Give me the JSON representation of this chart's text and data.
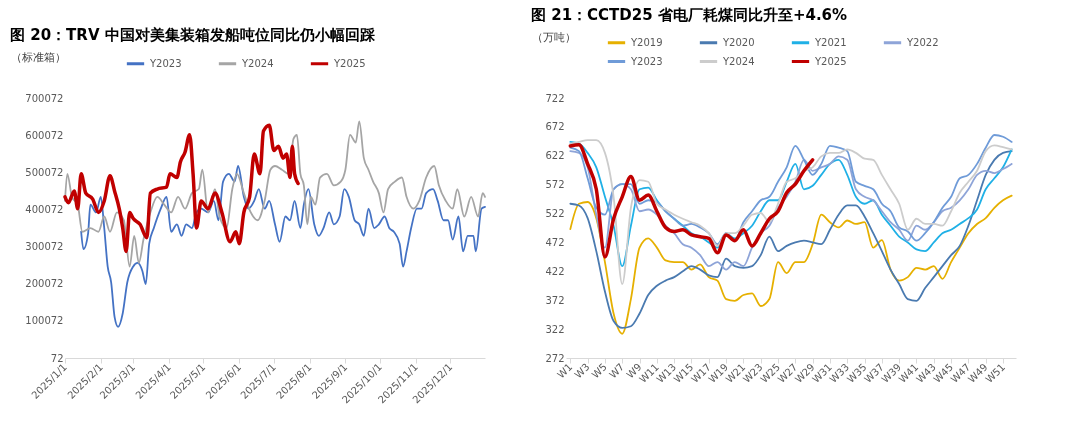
{
  "chart_data": [
    {
      "type": "line",
      "title": "图 20：TRV 中国对美集装箱发船吨位同比仍小幅回踩",
      "ylabel": "（标准箱）",
      "legend": "top",
      "grid": false,
      "xlim": [
        "2025-01-01",
        "2025-12-31"
      ],
      "xticks": [
        {
          "value": "2025-01-01",
          "label": "2025/1/1"
        },
        {
          "value": "2025-02-01",
          "label": "2025/2/1"
        },
        {
          "value": "2025-03-01",
          "label": "2025/3/1"
        },
        {
          "value": "2025-04-01",
          "label": "2025/4/1"
        },
        {
          "value": "2025-05-01",
          "label": "2025/5/1"
        },
        {
          "value": "2025-06-01",
          "label": "2025/6/1"
        },
        {
          "value": "2025-07-01",
          "label": "2025/7/1"
        },
        {
          "value": "2025-08-01",
          "label": "2025/8/1"
        },
        {
          "value": "2025-09-01",
          "label": "2025/9/1"
        },
        {
          "value": "2025-10-01",
          "label": "2025/10/1"
        },
        {
          "value": "2025-11-01",
          "label": "2025/11/1"
        },
        {
          "value": "2025-12-01",
          "label": "2025/12/1"
        }
      ],
      "ylim": [
        72,
        700072
      ],
      "yticks": [
        72,
        100072,
        200072,
        300072,
        400072,
        500072,
        600072,
        700072
      ],
      "series": [
        {
          "name": "Y2023",
          "color": "#4472c4",
          "x": [
            "2025-01-15",
            "2025-01-17",
            "2025-01-21",
            "2025-01-23",
            "2025-01-28",
            "2025-02-01",
            "2025-02-04",
            "2025-02-07",
            "2025-02-10",
            "2025-02-13",
            "2025-02-16",
            "2025-02-20",
            "2025-02-24",
            "2025-03-01",
            "2025-03-05",
            "2025-03-09",
            "2025-03-12",
            "2025-03-15",
            "2025-03-19",
            "2025-03-25",
            "2025-03-30",
            "2025-04-03",
            "2025-04-08",
            "2025-04-12",
            "2025-04-16",
            "2025-04-21",
            "2025-04-25",
            "2025-04-29",
            "2025-05-05",
            "2025-05-10",
            "2025-05-14",
            "2025-05-18",
            "2025-05-23",
            "2025-05-28",
            "2025-05-31",
            "2025-06-05",
            "2025-06-09",
            "2025-06-14",
            "2025-06-18",
            "2025-06-23",
            "2025-06-27",
            "2025-07-02",
            "2025-07-06",
            "2025-07-11",
            "2025-07-15",
            "2025-07-19",
            "2025-07-24",
            "2025-07-27",
            "2025-07-31",
            "2025-08-05",
            "2025-08-09",
            "2025-08-13",
            "2025-08-18",
            "2025-08-22",
            "2025-08-27",
            "2025-08-31",
            "2025-09-04",
            "2025-09-09",
            "2025-09-13",
            "2025-09-17",
            "2025-09-21",
            "2025-09-26",
            "2025-09-30",
            "2025-10-05",
            "2025-10-09",
            "2025-10-13",
            "2025-10-18",
            "2025-10-21",
            "2025-10-24",
            "2025-10-28",
            "2025-11-02",
            "2025-11-06",
            "2025-11-10",
            "2025-11-16",
            "2025-11-20",
            "2025-11-25",
            "2025-11-29",
            "2025-12-03",
            "2025-12-08",
            "2025-12-12",
            "2025-12-16",
            "2025-12-21",
            "2025-12-23",
            "2025-12-28",
            "2025-12-31"
          ],
          "values": [
            340000,
            293000,
            335000,
            413000,
            392000,
            434000,
            350000,
            246000,
            204000,
            110000,
            84000,
            120000,
            204000,
            246000,
            256000,
            235000,
            199000,
            308000,
            350000,
            402000,
            434000,
            340000,
            360000,
            329000,
            360000,
            350000,
            392000,
            402000,
            392000,
            423000,
            371000,
            475000,
            496000,
            475000,
            517000,
            434000,
            402000,
            423000,
            455000,
            402000,
            423000,
            360000,
            313000,
            381000,
            371000,
            423000,
            350000,
            413000,
            455000,
            360000,
            329000,
            350000,
            392000,
            360000,
            381000,
            455000,
            434000,
            371000,
            360000,
            329000,
            402000,
            350000,
            360000,
            381000,
            350000,
            340000,
            308000,
            246000,
            287000,
            350000,
            402000,
            402000,
            444000,
            455000,
            423000,
            371000,
            371000,
            319000,
            381000,
            287000,
            329000,
            329000,
            287000,
            402000,
            407000
          ]
        },
        {
          "name": "Y2024",
          "color": "#a5a5a5",
          "x": [
            "2025-01-01",
            "2025-01-03",
            "2025-01-07",
            "2025-01-12",
            "2025-01-16",
            "2025-01-23",
            "2025-01-30",
            "2025-02-04",
            "2025-02-09",
            "2025-02-15",
            "2025-02-21",
            "2025-02-26",
            "2025-03-02",
            "2025-03-06",
            "2025-03-10",
            "2025-03-16",
            "2025-03-22",
            "2025-03-28",
            "2025-04-03",
            "2025-04-09",
            "2025-04-15",
            "2025-04-21",
            "2025-04-27",
            "2025-04-30",
            "2025-05-05",
            "2025-05-11",
            "2025-05-15",
            "2025-05-21",
            "2025-05-26",
            "2025-05-30",
            "2025-06-05",
            "2025-06-11",
            "2025-06-17",
            "2025-06-23",
            "2025-06-28",
            "2025-07-02",
            "2025-07-08",
            "2025-07-14",
            "2025-07-18",
            "2025-07-21",
            "2025-07-24",
            "2025-07-27",
            "2025-07-30",
            "2025-08-02",
            "2025-08-06",
            "2025-08-10",
            "2025-08-16",
            "2025-08-22",
            "2025-08-28",
            "2025-09-01",
            "2025-09-05",
            "2025-09-10",
            "2025-09-13",
            "2025-09-17",
            "2025-09-21",
            "2025-09-25",
            "2025-09-30",
            "2025-10-04",
            "2025-10-08",
            "2025-10-14",
            "2025-10-20",
            "2025-10-24",
            "2025-10-30",
            "2025-11-04",
            "2025-11-10",
            "2025-11-17",
            "2025-11-21",
            "2025-11-27",
            "2025-12-03",
            "2025-12-07",
            "2025-12-13",
            "2025-12-19",
            "2025-12-25",
            "2025-12-29",
            "2025-12-31"
          ],
          "values": [
            423000,
            496000,
            434000,
            413000,
            340000,
            350000,
            340000,
            381000,
            340000,
            392000,
            371000,
            246000,
            329000,
            256000,
            319000,
            392000,
            434000,
            413000,
            392000,
            434000,
            402000,
            444000,
            455000,
            507000,
            392000,
            455000,
            381000,
            350000,
            455000,
            496000,
            444000,
            392000,
            371000,
            423000,
            507000,
            517000,
            507000,
            496000,
            590000,
            601000,
            496000,
            465000,
            360000,
            434000,
            413000,
            486000,
            496000,
            465000,
            475000,
            507000,
            601000,
            580000,
            637000,
            538000,
            507000,
            475000,
            444000,
            392000,
            455000,
            475000,
            486000,
            434000,
            402000,
            423000,
            486000,
            517000,
            465000,
            423000,
            402000,
            455000,
            381000,
            434000,
            381000,
            444000,
            434000
          ]
        },
        {
          "name": "Y2025",
          "color": "#c00000",
          "x": [
            "2025-01-01",
            "2025-01-04",
            "2025-01-09",
            "2025-01-12",
            "2025-01-15",
            "2025-01-19",
            "2025-01-25",
            "2025-01-30",
            "2025-02-04",
            "2025-02-09",
            "2025-02-13",
            "2025-02-17",
            "2025-02-20",
            "2025-02-23",
            "2025-02-26",
            "2025-03-01",
            "2025-03-07",
            "2025-03-13",
            "2025-03-16",
            "2025-03-22",
            "2025-03-30",
            "2025-04-02",
            "2025-04-08",
            "2025-04-11",
            "2025-04-15",
            "2025-04-19",
            "2025-04-22",
            "2025-04-25",
            "2025-04-29",
            "2025-05-05",
            "2025-05-11",
            "2025-05-17",
            "2025-05-24",
            "2025-05-29",
            "2025-06-01",
            "2025-06-05",
            "2025-06-10",
            "2025-06-14",
            "2025-06-19",
            "2025-06-22",
            "2025-06-27",
            "2025-07-01",
            "2025-07-05",
            "2025-07-09",
            "2025-07-12",
            "2025-07-15",
            "2025-07-17",
            "2025-07-19",
            "2025-07-22"
          ],
          "values": [
            434000,
            418000,
            450000,
            402000,
            496000,
            444000,
            428000,
            392000,
            423000,
            491000,
            449000,
            402000,
            350000,
            287000,
            392000,
            376000,
            360000,
            324000,
            444000,
            455000,
            460000,
            496000,
            486000,
            528000,
            554000,
            601000,
            496000,
            350000,
            423000,
            402000,
            444000,
            392000,
            313000,
            340000,
            308000,
            392000,
            434000,
            549000,
            496000,
            611000,
            627000,
            559000,
            570000,
            538000,
            549000,
            486000,
            570000,
            496000,
            470000
          ]
        }
      ]
    },
    {
      "type": "line",
      "title": "图 21：CCTD25 省电厂耗煤同比升至+4.6%",
      "ylabel": "（万吨）",
      "legend": "top",
      "grid": false,
      "categories": [
        "W1",
        null,
        "W3",
        null,
        "W5",
        null,
        "W7",
        null,
        "W9",
        null,
        "W11",
        null,
        "W13",
        null,
        "W15",
        null,
        "W17",
        null,
        "W19",
        null,
        "W21",
        null,
        "W23",
        null,
        "W25",
        null,
        "W27",
        null,
        "W29",
        null,
        "W31",
        null,
        "W33",
        null,
        "W35",
        null,
        "W37",
        null,
        "W39",
        null,
        "W41",
        null,
        "W43",
        null,
        "W45",
        null,
        "W47",
        null,
        "W49",
        null,
        "W51",
        null
      ],
      "ylim": [
        272,
        722
      ],
      "yticks": [
        272,
        322,
        372,
        422,
        472,
        522,
        572,
        622,
        672,
        722
      ],
      "series": [
        {
          "name": "Y2019",
          "color": "#e6b000",
          "values": [
            495,
            539,
            542,
            514,
            438,
            349,
            314,
            374,
            463,
            479,
            463,
            441,
            438,
            438,
            425,
            434,
            412,
            406,
            374,
            371,
            381,
            384,
            362,
            374,
            438,
            419,
            438,
            438,
            469,
            520,
            507,
            498,
            510,
            504,
            507,
            463,
            476,
            425,
            406,
            412,
            428,
            425,
            431,
            409,
            438,
            463,
            488,
            504,
            514,
            532,
            545,
            553
          ]
        },
        {
          "name": "Y2020",
          "color": "#4a7ab0",
          "values": [
            539,
            536,
            514,
            457,
            387,
            336,
            324,
            327,
            349,
            381,
            397,
            406,
            412,
            422,
            431,
            425,
            415,
            412,
            444,
            431,
            428,
            431,
            450,
            482,
            457,
            466,
            472,
            475,
            472,
            469,
            494,
            520,
            536,
            536,
            517,
            488,
            457,
            425,
            400,
            374,
            371,
            393,
            412,
            431,
            450,
            466,
            501,
            545,
            589,
            615,
            627,
            630
          ]
        },
        {
          "name": "Y2021",
          "color": "#1fb0e6",
          "values": [
            646,
            643,
            627,
            602,
            551,
            501,
            431,
            501,
            564,
            567,
            545,
            526,
            513,
            501,
            488,
            482,
            472,
            463,
            488,
            479,
            488,
            501,
            526,
            545,
            545,
            577,
            608,
            564,
            570,
            589,
            608,
            615,
            589,
            551,
            539,
            545,
            520,
            501,
            482,
            472,
            460,
            457,
            472,
            488,
            494,
            504,
            514,
            529,
            564,
            583,
            602,
            633
          ]
        },
        {
          "name": "Y2022",
          "color": "#8ea4d8",
          "values": [
            630,
            627,
            602,
            520,
            463,
            564,
            573,
            564,
            526,
            529,
            520,
            501,
            488,
            469,
            463,
            450,
            431,
            438,
            425,
            438,
            431,
            463,
            488,
            501,
            532,
            551,
            577,
            615,
            596,
            602,
            608,
            621,
            615,
            564,
            551,
            545,
            526,
            507,
            494,
            475,
            501,
            494,
            507,
            526,
            532,
            545,
            564,
            589,
            596,
            592,
            599,
            608
          ]
        },
        {
          "name": "Y2023",
          "color": "#6f9bd8",
          "values": [
            636,
            630,
            583,
            532,
            520,
            564,
            573,
            573,
            539,
            545,
            542,
            526,
            513,
            501,
            504,
            498,
            488,
            469,
            488,
            475,
            507,
            526,
            545,
            551,
            577,
            602,
            639,
            615,
            589,
            608,
            639,
            636,
            630,
            577,
            570,
            564,
            539,
            526,
            498,
            491,
            475,
            488,
            507,
            532,
            551,
            583,
            589,
            608,
            636,
            658,
            655,
            646
          ]
        },
        {
          "name": "Y2024",
          "color": "#cccccc",
          "values": [
            643,
            646,
            649,
            649,
            627,
            551,
            400,
            532,
            580,
            577,
            539,
            529,
            520,
            513,
            507,
            501,
            488,
            466,
            488,
            488,
            501,
            520,
            523,
            507,
            539,
            577,
            583,
            596,
            602,
            621,
            627,
            627,
            633,
            627,
            617,
            615,
            589,
            564,
            539,
            494,
            513,
            504,
            504,
            501,
            526,
            558,
            577,
            596,
            630,
            640,
            637,
            633
          ]
        },
        {
          "name": "Y2025",
          "color": "#c00000",
          "values": [
            639,
            641,
            608,
            564,
            447,
            513,
            551,
            586,
            545,
            554,
            526,
            498,
            491,
            494,
            485,
            482,
            479,
            454,
            485,
            475,
            494,
            466,
            488,
            513,
            526,
            558,
            573,
            596,
            615,
            null,
            null,
            null,
            null,
            null,
            null,
            null,
            null,
            null,
            null,
            null,
            null,
            null,
            null,
            null,
            null,
            null,
            null,
            null,
            null,
            null,
            null,
            null
          ]
        }
      ]
    }
  ]
}
